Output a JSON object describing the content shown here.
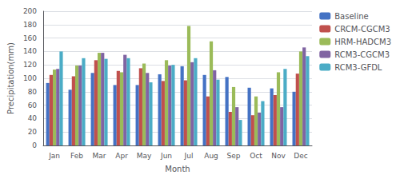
{
  "chart_data": {
    "type": "bar",
    "xlabel": "Month",
    "ylabel": "Precipitation(mm)",
    "categories": [
      "Jan",
      "Feb",
      "Mar",
      "Apr",
      "May",
      "Jun",
      "Jul",
      "Aug",
      "Sep",
      "Oct",
      "Nov",
      "Dec"
    ],
    "series": [
      {
        "name": "Baseline",
        "color": "#4472c4",
        "values": [
          93,
          83,
          108,
          90,
          90,
          106,
          118,
          105,
          102,
          86,
          85,
          80
        ]
      },
      {
        "name": "CRCM-CGCM3",
        "color": "#c0504d",
        "values": [
          105,
          103,
          127,
          111,
          115,
          96,
          97,
          73,
          50,
          45,
          75,
          107
        ]
      },
      {
        "name": "HRM-HADCM3",
        "color": "#9bbb59",
        "values": [
          113,
          119,
          138,
          109,
          122,
          127,
          178,
          155,
          87,
          73,
          109,
          140
        ]
      },
      {
        "name": "RCM3-CGCM3",
        "color": "#8064a2",
        "values": [
          114,
          119,
          138,
          135,
          108,
          119,
          124,
          112,
          57,
          49,
          57,
          146
        ]
      },
      {
        "name": "RCM3-GFDL",
        "color": "#4bacc6",
        "values": [
          140,
          130,
          129,
          130,
          94,
          120,
          130,
          98,
          38,
          66,
          114,
          133
        ]
      }
    ],
    "ylim": [
      0,
      200
    ],
    "yticks": [
      0,
      20,
      40,
      60,
      80,
      100,
      120,
      140,
      160,
      180,
      200
    ],
    "grid": true,
    "legend": "right"
  }
}
